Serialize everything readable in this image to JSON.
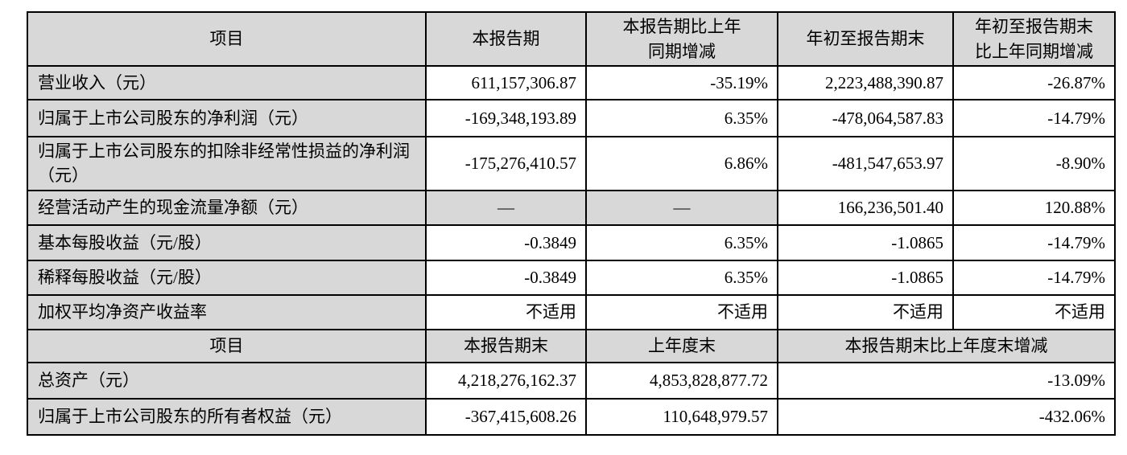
{
  "colors": {
    "shaded_cell_bg": "#d8d8d8",
    "data_cell_bg": "#ffffff",
    "border": "#000000",
    "text": "#000000"
  },
  "table1": {
    "headers": [
      "项目",
      "本报告期",
      "本报告期比上年同期增减",
      "年初至报告期末",
      "年初至报告期末比上年同期增减"
    ],
    "rows": [
      {
        "label": "营业收入（元）",
        "values": [
          "611,157,306.87",
          "-35.19%",
          "2,223,488,390.87",
          "-26.87%"
        ]
      },
      {
        "label": "归属于上市公司股东的净利润（元）",
        "values": [
          "-169,348,193.89",
          "6.35%",
          "-478,064,587.83",
          "-14.79%"
        ]
      },
      {
        "label": "归属于上市公司股东的扣除非经常性损益的净利润（元）",
        "values": [
          "-175,276,410.57",
          "6.86%",
          "-481,547,653.97",
          "-8.90%"
        ]
      },
      {
        "label": "经营活动产生的现金流量净额（元）",
        "values": [
          "—",
          "—",
          "166,236,501.40",
          "120.88%"
        ]
      },
      {
        "label": "基本每股收益（元/股）",
        "values": [
          "-0.3849",
          "6.35%",
          "-1.0865",
          "-14.79%"
        ]
      },
      {
        "label": "稀释每股收益（元/股）",
        "values": [
          "-0.3849",
          "6.35%",
          "-1.0865",
          "-14.79%"
        ]
      },
      {
        "label": "加权平均净资产收益率",
        "values": [
          "不适用",
          "不适用",
          "不适用",
          "不适用"
        ]
      }
    ]
  },
  "table2": {
    "headers": [
      "项目",
      "本报告期末",
      "上年度末",
      "本报告期末比上年度末增减"
    ],
    "rows": [
      {
        "label": "总资产（元）",
        "values": [
          "4,218,276,162.37",
          "4,853,828,877.72",
          "-13.09%"
        ]
      },
      {
        "label": "归属于上市公司股东的所有者权益（元）",
        "values": [
          "-367,415,608.26",
          "110,648,979.57",
          "-432.06%"
        ]
      }
    ]
  }
}
